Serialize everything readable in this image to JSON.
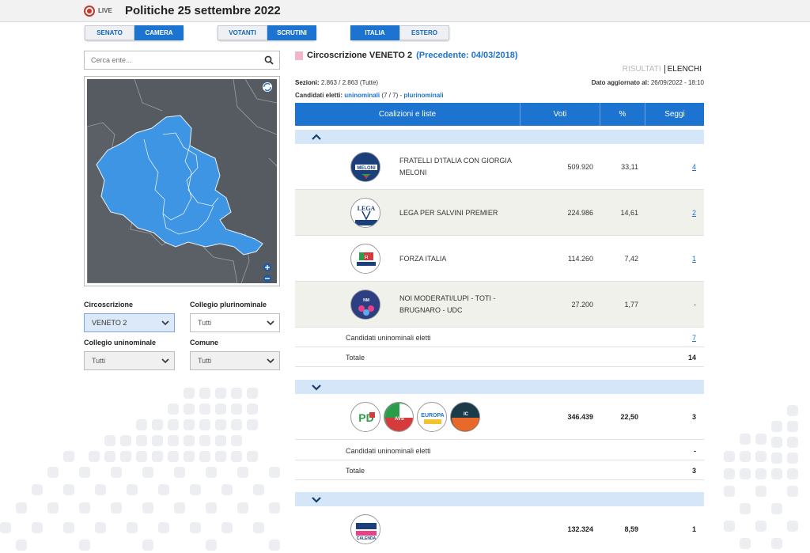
{
  "header": {
    "live_label": "LIVE",
    "title": "Politiche 25 settembre 2022"
  },
  "tabs": {
    "chamber": [
      {
        "label": "SENATO",
        "active": false
      },
      {
        "label": "CAMERA",
        "active": true
      }
    ],
    "mode": [
      {
        "label": "VOTANTI",
        "active": false
      },
      {
        "label": "SCRUTINI",
        "active": true
      }
    ],
    "area": [
      {
        "label": "ITALIA",
        "active": true
      },
      {
        "label": "ESTERO",
        "active": false
      }
    ]
  },
  "search": {
    "placeholder": "Cerca ente..."
  },
  "filters": {
    "circoscrizione_label": "Circoscrizione",
    "circoscrizione_value": "VENETO 2",
    "plurinominale_label": "Collegio plurinominale",
    "plurinominale_value": "Tutti",
    "uninominale_label": "Collegio uninominale",
    "uninominale_value": "Tutti",
    "comune_label": "Comune",
    "comune_value": "Tutti"
  },
  "panel": {
    "title": "Circoscrizione VENETO 2",
    "previous": "(Precedente: 04/03/2018)",
    "view_results": "RISULTATI",
    "view_lists": "ELENCHI",
    "sezioni_label": "Sezioni:",
    "sezioni_value": "2.863 / 2.863 (Tutte)",
    "updated_label": "Dato aggiornato al:",
    "updated_value": "26/09/2022 - 18:10",
    "elected_label": "Candidati eletti:",
    "elected_uni": "uninominali",
    "elected_count": "(7 / 7) -",
    "elected_pluri": "plurinominali"
  },
  "table": {
    "headers": {
      "coalitions": "Coalizioni e liste",
      "votes": "Voti",
      "percent": "%",
      "seats": "Seggi"
    },
    "group1": {
      "rows": [
        {
          "logo_text": "MELONI",
          "name": "FRATELLI D'ITALIA CON GIORGIA MELONI",
          "votes": "509.920",
          "pct": "33,11",
          "seats": "4"
        },
        {
          "logo_text": "LEGA",
          "name": "LEGA PER SALVINI PREMIER",
          "votes": "224.986",
          "pct": "14,61",
          "seats": "2"
        },
        {
          "logo_text": "FI",
          "name": "FORZA ITALIA",
          "votes": "114.260",
          "pct": "7,42",
          "seats": "1"
        },
        {
          "logo_text": "NM",
          "name": "NOI MODERATI/LUPI - TOTI - BRUGNARO - UDC",
          "votes": "27.200",
          "pct": "1,77",
          "seats": "-"
        }
      ],
      "uninominali_label": "Candidati uninominali eletti",
      "uninominali_value": "7",
      "total_label": "Totale",
      "total_value": "14"
    },
    "group2": {
      "logos": [
        "PD",
        "AVS",
        "EUROPA",
        "IC"
      ],
      "votes": "346.439",
      "pct": "22,50",
      "seats": "3",
      "uninominali_label": "Candidati uninominali eletti",
      "uninominali_value": "-",
      "total_label": "Totale",
      "total_value": "3"
    },
    "group3": {
      "logo_text": "CALENDA",
      "votes": "132.324",
      "pct": "8,59",
      "seats": "1"
    }
  },
  "colors": {
    "accent": "#1d73d0",
    "region_fill": "#3d95e3",
    "map_background": "#555b60"
  }
}
